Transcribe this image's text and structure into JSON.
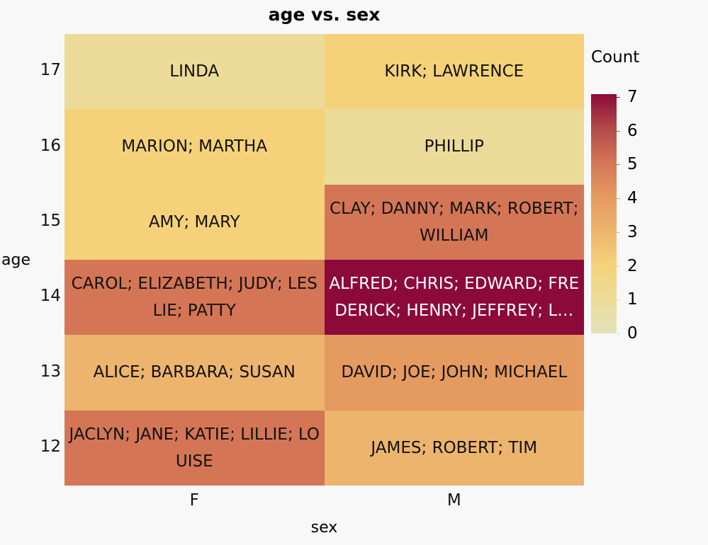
{
  "chart_data": {
    "type": "heatmap",
    "title": "age vs. sex",
    "xlabel": "sex",
    "ylabel": "age",
    "x_categories": [
      "F",
      "M"
    ],
    "y_categories": [
      "17",
      "16",
      "15",
      "14",
      "13",
      "12"
    ],
    "cells": [
      {
        "x": "F",
        "y": "17",
        "count": 1,
        "label": "LINDA"
      },
      {
        "x": "M",
        "y": "17",
        "count": 2,
        "label": "KIRK; LAWRENCE"
      },
      {
        "x": "F",
        "y": "16",
        "count": 2,
        "label": "MARION; MARTHA"
      },
      {
        "x": "M",
        "y": "16",
        "count": 1,
        "label": "PHILLIP"
      },
      {
        "x": "F",
        "y": "15",
        "count": 2,
        "label": "AMY; MARY"
      },
      {
        "x": "M",
        "y": "15",
        "count": 5,
        "label": "CLAY; DANNY; MARK; ROBERT; WILLIAM"
      },
      {
        "x": "F",
        "y": "14",
        "count": 5,
        "label": "CAROL; ELIZABETH; JUDY; LESLIE; PATTY"
      },
      {
        "x": "M",
        "y": "14",
        "count": 7,
        "label": "ALFRED; CHRIS; EDWARD; FREDERICK; HENRY; JEFFREY; L…"
      },
      {
        "x": "F",
        "y": "13",
        "count": 3,
        "label": "ALICE; BARBARA; SUSAN"
      },
      {
        "x": "M",
        "y": "13",
        "count": 4,
        "label": "DAVID; JOE; JOHN; MICHAEL"
      },
      {
        "x": "F",
        "y": "12",
        "count": 5,
        "label": "JACLYN; JANE; KATIE; LILLIE; LOUISE"
      },
      {
        "x": "M",
        "y": "12",
        "count": 3,
        "label": "JAMES; ROBERT; TIM"
      }
    ],
    "legend": {
      "title": "Count",
      "ticks": [
        "0",
        "1",
        "2",
        "3",
        "4",
        "5",
        "6",
        "7"
      ],
      "range": [
        0,
        7
      ],
      "colors": [
        "#e3e2b9",
        "#ecdb98",
        "#f5d27a",
        "#edb46e",
        "#e59a60",
        "#d47656",
        "#b24a4a",
        "#8b0a3a"
      ],
      "placement": "right"
    }
  }
}
